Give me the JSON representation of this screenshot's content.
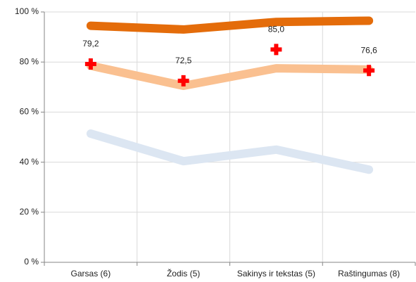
{
  "chart_data": {
    "type": "line",
    "categories": [
      "Garsas (6)",
      "Žodis (5)",
      "Sakinys ir tekstas (5)",
      "Raštingumas (8)"
    ],
    "series": [
      {
        "color": "#e46c0a",
        "values": [
          94.5,
          93,
          96,
          96.5
        ]
      },
      {
        "color": "#fac090",
        "values": [
          78.5,
          70.5,
          77.5,
          77
        ]
      },
      {
        "color": "#dce6f2",
        "values": [
          51.4,
          40.4,
          45,
          37
        ]
      },
      {
        "color": "#ff0000",
        "marker": "plus",
        "values": [
          79.2,
          72.5,
          85.0,
          76.6
        ],
        "value_labels": [
          "79,2",
          "72,5",
          "85,0",
          "76,6"
        ]
      }
    ],
    "ylim": [
      0,
      100
    ],
    "yticks": [
      {
        "value": 0,
        "label": "0 %"
      },
      {
        "value": 20,
        "label": "20 %"
      },
      {
        "value": 40,
        "label": "40 %"
      },
      {
        "value": 60,
        "label": "60 %"
      },
      {
        "value": 80,
        "label": "80 %"
      },
      {
        "value": 100,
        "label": "100 %"
      }
    ],
    "grid": true
  }
}
